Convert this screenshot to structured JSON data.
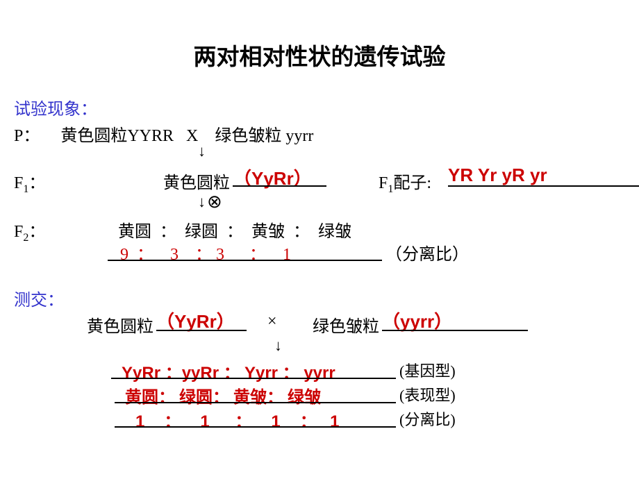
{
  "colors": {
    "heading_blue": "#3333cc",
    "answer_red": "#cc0000",
    "text_black": "#000000",
    "background": "#ffffff"
  },
  "title": "两对相对性状的遗传试验",
  "phenomenon_label": "试验现象：",
  "p_line": "P：     黄色圆粒YYRR   X    绿色皱粒 yyrr",
  "arrow_down": "↓",
  "f1_symbol_prefix": "F",
  "f1_sub": "1",
  "f1_colon": "：",
  "f1_label": "黄色圆粒",
  "f1_genotype": "（YyRr）",
  "f1_gametes_label_prefix": "F",
  "f1_gametes_label_suffix": "配子:",
  "f1_gametes": "YR Yr  yR  yr",
  "self_cross_symbol": "⊗",
  "f2_symbol_prefix": "F",
  "f2_sub": "2",
  "f2_phenotypes": "黄圆  ：  绿圆  ：  黄皱  ：  绿皱",
  "f2_ratio": "9  ：    3    ： 3      ：    1",
  "f2_ratio_label": "（分离比）",
  "testcross_label": "测交：",
  "testcross_p1": "黄色圆粒",
  "testcross_p1_geno": "（YyRr）",
  "testcross_x": "×",
  "testcross_p2": "绿色皱粒",
  "testcross_p2_geno": "（yyrr）",
  "tc_genotypes": "YyRr ：yyRr ： Yyrr ： yyrr",
  "tc_geno_label": "(基因型)",
  "tc_phenotypes": "黄圆： 绿圆： 黄皱： 绿皱",
  "tc_pheno_label": "(表现型)",
  "tc_ratio": "1   ：   1    ：   1   ：  1",
  "tc_ratio_label": "(分离比)"
}
